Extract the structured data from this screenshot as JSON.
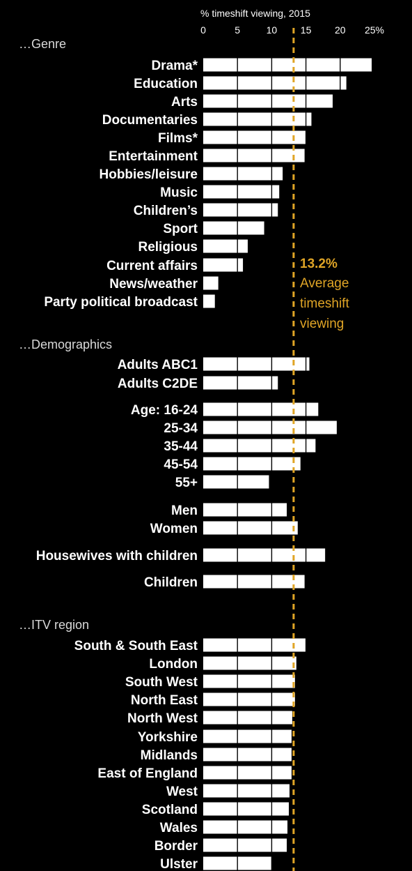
{
  "chart_data": {
    "type": "bar",
    "orientation": "horizontal",
    "title": "% timeshift viewing, 2015",
    "xlim": [
      0,
      25
    ],
    "ticks": [
      {
        "value": 0,
        "label": "0"
      },
      {
        "value": 5,
        "label": "5"
      },
      {
        "value": 10,
        "label": "10"
      },
      {
        "value": 15,
        "label": "15"
      },
      {
        "value": 20,
        "label": "20"
      },
      {
        "value": 25,
        "label": "25%"
      }
    ],
    "grid": true,
    "bar_color": "#ffffff",
    "gridline_color": "#000000",
    "reference_line": {
      "value": 13.2,
      "value_label": "13.2%",
      "text_lines": [
        "Average",
        "timeshift",
        "viewing"
      ],
      "color": "#e0a526",
      "style": "dashed"
    },
    "sections": [
      {
        "label": "…Genre",
        "items": [
          {
            "category": "Drama*",
            "value": 24.6
          },
          {
            "category": "Education",
            "value": 20.9
          },
          {
            "category": "Arts",
            "value": 18.9
          },
          {
            "category": "Documentaries",
            "value": 15.8
          },
          {
            "category": "Films*",
            "value": 15.0
          },
          {
            "category": "Entertainment",
            "value": 14.8
          },
          {
            "category": "Hobbies/leisure",
            "value": 11.6
          },
          {
            "category": "Music",
            "value": 11.1
          },
          {
            "category": "Children’s",
            "value": 10.9
          },
          {
            "category": "Sport",
            "value": 8.9
          },
          {
            "category": "Religious",
            "value": 6.5
          },
          {
            "category": "Current affairs",
            "value": 5.8
          },
          {
            "category": "News/weather",
            "value": 2.2
          },
          {
            "category": "Party political broadcast",
            "value": 1.7
          }
        ]
      },
      {
        "label": "…Demographics",
        "items": [
          {
            "category": "Adults ABC1",
            "value": 15.5
          },
          {
            "category": "Adults C2DE",
            "value": 10.9
          },
          {
            "category": "Age: 16-24",
            "value": 16.8
          },
          {
            "category": "25-34",
            "value": 19.5
          },
          {
            "category": "35-44",
            "value": 16.4
          },
          {
            "category": "45-54",
            "value": 14.2
          },
          {
            "category": "55+",
            "value": 9.6
          },
          {
            "category": "Men",
            "value": 12.2
          },
          {
            "category": "Women",
            "value": 13.8
          },
          {
            "category": "Housewives with children",
            "value": 17.8
          },
          {
            "category": "Children",
            "value": 14.8
          }
        ]
      },
      {
        "label": "…ITV region",
        "items": [
          {
            "category": "South & South East",
            "value": 15.0
          },
          {
            "category": "London",
            "value": 13.6
          },
          {
            "category": "South West",
            "value": 13.4
          },
          {
            "category": "North East",
            "value": 13.4
          },
          {
            "category": "North West",
            "value": 13.0
          },
          {
            "category": "Yorkshire",
            "value": 12.9
          },
          {
            "category": "Midlands",
            "value": 12.9
          },
          {
            "category": "East of England",
            "value": 12.9
          },
          {
            "category": "West",
            "value": 12.6
          },
          {
            "category": "Scotland",
            "value": 12.5
          },
          {
            "category": "Wales",
            "value": 12.3
          },
          {
            "category": "Border",
            "value": 12.2
          },
          {
            "category": "Ulster",
            "value": 10.0
          }
        ]
      }
    ]
  }
}
